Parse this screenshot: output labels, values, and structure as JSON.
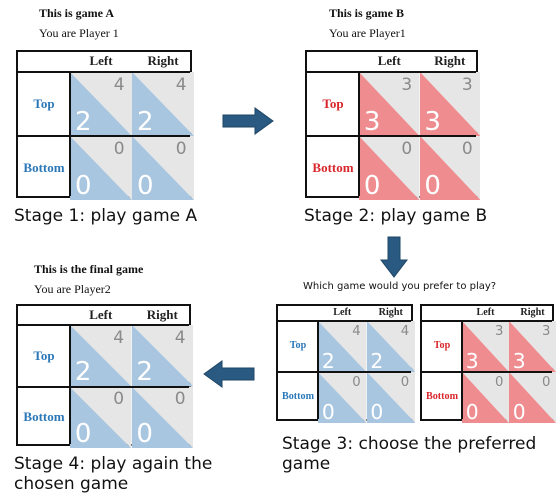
{
  "colors": {
    "blue_text": "#2b78b8",
    "red_text": "#d9262c",
    "blue_fill": "#a9c6e0",
    "red_fill": "#ee8c8f",
    "grey_fill": "#e6e6e6",
    "arrow_fill": "#2a5a82"
  },
  "game_a": {
    "title": "This is game A",
    "player": "You are Player 1",
    "stage_label": "Stage 1: play game A"
  },
  "game_b": {
    "title": "This is  game B",
    "player": "You are Player1",
    "stage_label": "Stage 2: play game B"
  },
  "final_game": {
    "title": "This is  the final game",
    "player": "You are Player2",
    "stage_label": "Stage 4: play again the chosen game"
  },
  "choice": {
    "question": "Which game would you prefer to play?",
    "stage_label": "Stage 3: choose the preferred game"
  },
  "matrix_labels": {
    "col_left": "Left",
    "col_right": "Right",
    "row_top": "Top",
    "row_bottom": "Bottom"
  },
  "payoffs": {
    "game_a": {
      "top_left": {
        "row": "2",
        "col": "4"
      },
      "top_right": {
        "row": "2",
        "col": "4"
      },
      "bottom_left": {
        "row": "0",
        "col": "0"
      },
      "bottom_right": {
        "row": "0",
        "col": "0"
      }
    },
    "game_b": {
      "top_left": {
        "row": "3",
        "col": "3"
      },
      "top_right": {
        "row": "3",
        "col": "3"
      },
      "bottom_left": {
        "row": "0",
        "col": "0"
      },
      "bottom_right": {
        "row": "0",
        "col": "0"
      }
    }
  }
}
